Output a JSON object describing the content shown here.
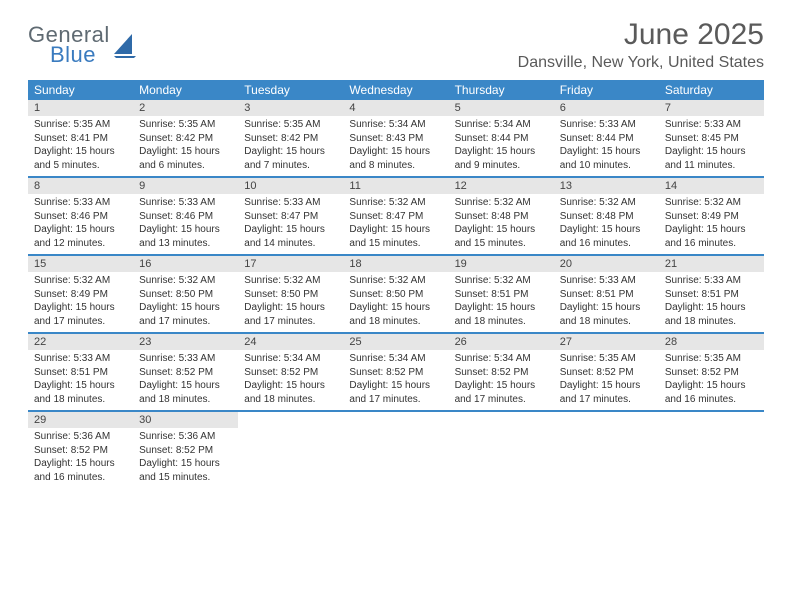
{
  "logo": {
    "word1": "General",
    "word2": "Blue",
    "shape_color": "#2f6aa8"
  },
  "title": "June 2025",
  "location": "Dansville, New York, United States",
  "weekday_header_bg": "#3a87c7",
  "weekday_header_fg": "#ffffff",
  "date_row_bg": "#e6e6e6",
  "separator_color": "#3a87c7",
  "weekdays": [
    "Sunday",
    "Monday",
    "Tuesday",
    "Wednesday",
    "Thursday",
    "Friday",
    "Saturday"
  ],
  "weeks": [
    {
      "dates": [
        "1",
        "2",
        "3",
        "4",
        "5",
        "6",
        "7"
      ],
      "cells": [
        {
          "sunrise": "Sunrise: 5:35 AM",
          "sunset": "Sunset: 8:41 PM",
          "daylight": "Daylight: 15 hours and 5 minutes."
        },
        {
          "sunrise": "Sunrise: 5:35 AM",
          "sunset": "Sunset: 8:42 PM",
          "daylight": "Daylight: 15 hours and 6 minutes."
        },
        {
          "sunrise": "Sunrise: 5:35 AM",
          "sunset": "Sunset: 8:42 PM",
          "daylight": "Daylight: 15 hours and 7 minutes."
        },
        {
          "sunrise": "Sunrise: 5:34 AM",
          "sunset": "Sunset: 8:43 PM",
          "daylight": "Daylight: 15 hours and 8 minutes."
        },
        {
          "sunrise": "Sunrise: 5:34 AM",
          "sunset": "Sunset: 8:44 PM",
          "daylight": "Daylight: 15 hours and 9 minutes."
        },
        {
          "sunrise": "Sunrise: 5:33 AM",
          "sunset": "Sunset: 8:44 PM",
          "daylight": "Daylight: 15 hours and 10 minutes."
        },
        {
          "sunrise": "Sunrise: 5:33 AM",
          "sunset": "Sunset: 8:45 PM",
          "daylight": "Daylight: 15 hours and 11 minutes."
        }
      ]
    },
    {
      "dates": [
        "8",
        "9",
        "10",
        "11",
        "12",
        "13",
        "14"
      ],
      "cells": [
        {
          "sunrise": "Sunrise: 5:33 AM",
          "sunset": "Sunset: 8:46 PM",
          "daylight": "Daylight: 15 hours and 12 minutes."
        },
        {
          "sunrise": "Sunrise: 5:33 AM",
          "sunset": "Sunset: 8:46 PM",
          "daylight": "Daylight: 15 hours and 13 minutes."
        },
        {
          "sunrise": "Sunrise: 5:33 AM",
          "sunset": "Sunset: 8:47 PM",
          "daylight": "Daylight: 15 hours and 14 minutes."
        },
        {
          "sunrise": "Sunrise: 5:32 AM",
          "sunset": "Sunset: 8:47 PM",
          "daylight": "Daylight: 15 hours and 15 minutes."
        },
        {
          "sunrise": "Sunrise: 5:32 AM",
          "sunset": "Sunset: 8:48 PM",
          "daylight": "Daylight: 15 hours and 15 minutes."
        },
        {
          "sunrise": "Sunrise: 5:32 AM",
          "sunset": "Sunset: 8:48 PM",
          "daylight": "Daylight: 15 hours and 16 minutes."
        },
        {
          "sunrise": "Sunrise: 5:32 AM",
          "sunset": "Sunset: 8:49 PM",
          "daylight": "Daylight: 15 hours and 16 minutes."
        }
      ]
    },
    {
      "dates": [
        "15",
        "16",
        "17",
        "18",
        "19",
        "20",
        "21"
      ],
      "cells": [
        {
          "sunrise": "Sunrise: 5:32 AM",
          "sunset": "Sunset: 8:49 PM",
          "daylight": "Daylight: 15 hours and 17 minutes."
        },
        {
          "sunrise": "Sunrise: 5:32 AM",
          "sunset": "Sunset: 8:50 PM",
          "daylight": "Daylight: 15 hours and 17 minutes."
        },
        {
          "sunrise": "Sunrise: 5:32 AM",
          "sunset": "Sunset: 8:50 PM",
          "daylight": "Daylight: 15 hours and 17 minutes."
        },
        {
          "sunrise": "Sunrise: 5:32 AM",
          "sunset": "Sunset: 8:50 PM",
          "daylight": "Daylight: 15 hours and 18 minutes."
        },
        {
          "sunrise": "Sunrise: 5:32 AM",
          "sunset": "Sunset: 8:51 PM",
          "daylight": "Daylight: 15 hours and 18 minutes."
        },
        {
          "sunrise": "Sunrise: 5:33 AM",
          "sunset": "Sunset: 8:51 PM",
          "daylight": "Daylight: 15 hours and 18 minutes."
        },
        {
          "sunrise": "Sunrise: 5:33 AM",
          "sunset": "Sunset: 8:51 PM",
          "daylight": "Daylight: 15 hours and 18 minutes."
        }
      ]
    },
    {
      "dates": [
        "22",
        "23",
        "24",
        "25",
        "26",
        "27",
        "28"
      ],
      "cells": [
        {
          "sunrise": "Sunrise: 5:33 AM",
          "sunset": "Sunset: 8:51 PM",
          "daylight": "Daylight: 15 hours and 18 minutes."
        },
        {
          "sunrise": "Sunrise: 5:33 AM",
          "sunset": "Sunset: 8:52 PM",
          "daylight": "Daylight: 15 hours and 18 minutes."
        },
        {
          "sunrise": "Sunrise: 5:34 AM",
          "sunset": "Sunset: 8:52 PM",
          "daylight": "Daylight: 15 hours and 18 minutes."
        },
        {
          "sunrise": "Sunrise: 5:34 AM",
          "sunset": "Sunset: 8:52 PM",
          "daylight": "Daylight: 15 hours and 17 minutes."
        },
        {
          "sunrise": "Sunrise: 5:34 AM",
          "sunset": "Sunset: 8:52 PM",
          "daylight": "Daylight: 15 hours and 17 minutes."
        },
        {
          "sunrise": "Sunrise: 5:35 AM",
          "sunset": "Sunset: 8:52 PM",
          "daylight": "Daylight: 15 hours and 17 minutes."
        },
        {
          "sunrise": "Sunrise: 5:35 AM",
          "sunset": "Sunset: 8:52 PM",
          "daylight": "Daylight: 15 hours and 16 minutes."
        }
      ]
    },
    {
      "dates": [
        "29",
        "30",
        "",
        "",
        "",
        "",
        ""
      ],
      "cells": [
        {
          "sunrise": "Sunrise: 5:36 AM",
          "sunset": "Sunset: 8:52 PM",
          "daylight": "Daylight: 15 hours and 16 minutes."
        },
        {
          "sunrise": "Sunrise: 5:36 AM",
          "sunset": "Sunset: 8:52 PM",
          "daylight": "Daylight: 15 hours and 15 minutes."
        },
        null,
        null,
        null,
        null,
        null
      ]
    }
  ]
}
